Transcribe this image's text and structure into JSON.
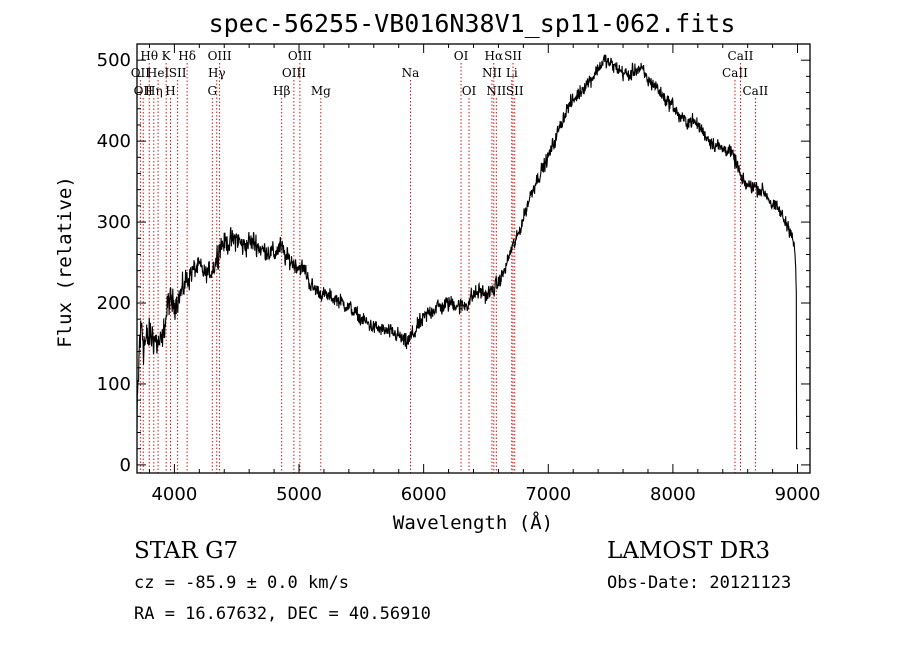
{
  "chart_data": {
    "type": "line",
    "title": "spec-56255-VB016N38V1_sp11-062.fits",
    "xlabel": "Wavelength (Å)",
    "ylabel": "Flux (relative)",
    "xlim": [
      3700,
      9100
    ],
    "ylim": [
      -10,
      520
    ],
    "xticks": [
      4000,
      5000,
      6000,
      7000,
      8000,
      9000
    ],
    "yticks": [
      0,
      100,
      200,
      300,
      400,
      500
    ],
    "grid": false,
    "spectrum_anchor_points": {
      "x": [
        3700,
        3720,
        3740,
        3760,
        3780,
        3800,
        3830,
        3860,
        3900,
        3950,
        4000,
        4050,
        4100,
        4150,
        4200,
        4250,
        4300,
        4330,
        4360,
        4400,
        4450,
        4500,
        4550,
        4600,
        4650,
        4700,
        4750,
        4800,
        4850,
        4900,
        4950,
        5000,
        5050,
        5100,
        5150,
        5200,
        5300,
        5400,
        5500,
        5600,
        5700,
        5800,
        5850,
        5890,
        5950,
        6000,
        6050,
        6100,
        6150,
        6200,
        6250,
        6300,
        6350,
        6400,
        6450,
        6500,
        6550,
        6600,
        6650,
        6700,
        6750,
        6800,
        6850,
        6900,
        6950,
        7000,
        7050,
        7100,
        7150,
        7200,
        7250,
        7300,
        7350,
        7400,
        7450,
        7500,
        7550,
        7600,
        7650,
        7700,
        7750,
        7800,
        7850,
        7900,
        7950,
        8000,
        8050,
        8100,
        8150,
        8200,
        8250,
        8300,
        8350,
        8400,
        8450,
        8500,
        8530,
        8550,
        8600,
        8650,
        8700,
        8750,
        8800,
        8850,
        8900,
        8950,
        8980,
        9000
      ],
      "y": [
        40,
        150,
        170,
        150,
        150,
        160,
        160,
        150,
        150,
        200,
        200,
        210,
        230,
        240,
        245,
        235,
        240,
        250,
        270,
        275,
        275,
        280,
        270,
        275,
        275,
        265,
        265,
        260,
        270,
        255,
        250,
        245,
        240,
        220,
        215,
        210,
        205,
        195,
        180,
        170,
        165,
        160,
        150,
        155,
        170,
        180,
        190,
        195,
        195,
        200,
        200,
        195,
        200,
        210,
        215,
        210,
        215,
        225,
        240,
        265,
        280,
        305,
        330,
        350,
        365,
        380,
        400,
        420,
        440,
        450,
        460,
        470,
        478,
        490,
        500,
        495,
        490,
        485,
        480,
        490,
        488,
        475,
        470,
        460,
        450,
        445,
        430,
        425,
        425,
        420,
        410,
        400,
        395,
        390,
        390,
        375,
        365,
        350,
        345,
        345,
        340,
        335,
        320,
        315,
        300,
        290,
        260,
        170
      ],
      "noise_level": [
        45,
        40,
        38,
        35,
        30,
        28,
        25,
        22,
        18,
        20,
        18,
        18,
        18,
        16,
        14,
        12,
        14,
        16,
        18,
        16,
        16,
        16,
        16,
        16,
        16,
        14,
        14,
        14,
        14,
        14,
        12,
        12,
        12,
        12,
        10,
        10,
        10,
        10,
        10,
        10,
        10,
        10,
        12,
        14,
        12,
        12,
        12,
        12,
        12,
        12,
        12,
        12,
        12,
        12,
        12,
        12,
        10,
        10,
        10,
        10,
        10,
        10,
        10,
        10,
        10,
        10,
        10,
        10,
        10,
        10,
        10,
        10,
        10,
        10,
        10,
        10,
        10,
        10,
        10,
        10,
        10,
        10,
        10,
        10,
        10,
        10,
        10,
        10,
        10,
        10,
        10,
        10,
        10,
        10,
        10,
        10,
        10,
        10,
        10,
        10,
        10,
        10,
        10,
        10,
        10,
        10,
        10,
        10
      ]
    },
    "spectral_lines": [
      {
        "wave": 3727,
        "label": "OII",
        "row": 2
      },
      {
        "wave": 3750,
        "label": "OII",
        "row": 3
      },
      {
        "wave": 3798,
        "label": "Hθ",
        "row": 1
      },
      {
        "wave": 3835,
        "label": "Hη",
        "row": 3
      },
      {
        "wave": 3869,
        "label": "HeI",
        "row": 2
      },
      {
        "wave": 3934,
        "label": "K",
        "row": 1
      },
      {
        "wave": 3969,
        "label": "H",
        "row": 3
      },
      {
        "wave": 4026,
        "label": "SII",
        "row": 2
      },
      {
        "wave": 4102,
        "label": "Hδ",
        "row": 1
      },
      {
        "wave": 4304,
        "label": "G",
        "row": 3
      },
      {
        "wave": 4340,
        "label": "Hγ",
        "row": 2
      },
      {
        "wave": 4363,
        "label": "OIII",
        "row": 1
      },
      {
        "wave": 4861,
        "label": "Hβ",
        "row": 3
      },
      {
        "wave": 4959,
        "label": "OIII",
        "row": 2
      },
      {
        "wave": 5007,
        "label": "OIII",
        "row": 1
      },
      {
        "wave": 5175,
        "label": "Mg",
        "row": 3
      },
      {
        "wave": 5894,
        "label": "Na",
        "row": 2
      },
      {
        "wave": 6300,
        "label": "OI",
        "row": 1
      },
      {
        "wave": 6364,
        "label": "OI",
        "row": 3
      },
      {
        "wave": 6548,
        "label": "NII",
        "row": 2
      },
      {
        "wave": 6563,
        "label": "Hα",
        "row": 1
      },
      {
        "wave": 6583,
        "label": "NII",
        "row": 3
      },
      {
        "wave": 6707,
        "label": "Li",
        "row": 2
      },
      {
        "wave": 6717,
        "label": "SII",
        "row": 1
      },
      {
        "wave": 6731,
        "label": "SII",
        "row": 3
      },
      {
        "wave": 8498,
        "label": "CaII",
        "row": 2
      },
      {
        "wave": 8542,
        "label": "CaII",
        "row": 1
      },
      {
        "wave": 8662,
        "label": "CaII",
        "row": 3
      }
    ],
    "line_color": "#cc0000",
    "spectrum_color": "#000000"
  },
  "info": {
    "class_text": "STAR    G7",
    "survey_text": "LAMOST DR3",
    "cz_text": "cz = -85.9 ± 0.0 km/s",
    "obsdate_text": "Obs-Date: 20121123",
    "radec_text": "RA =  16.67632, DEC =  40.56910"
  }
}
